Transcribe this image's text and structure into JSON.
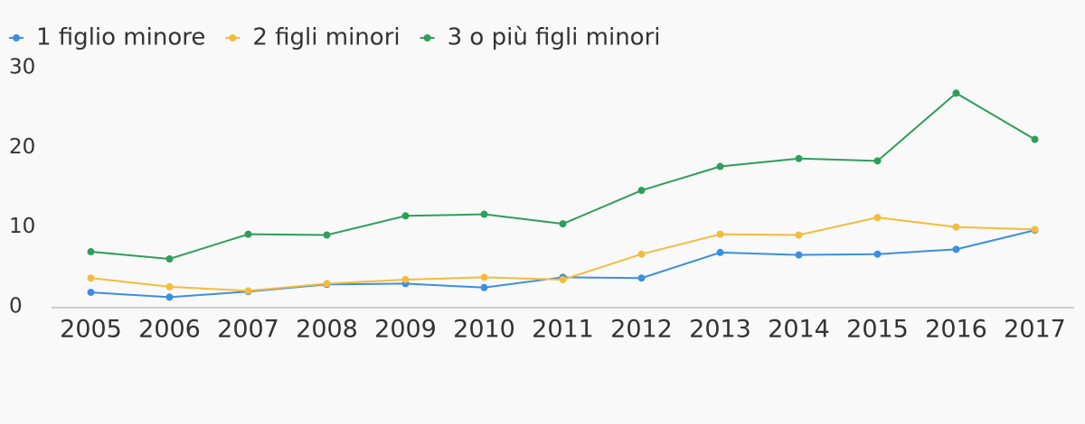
{
  "chart_data": {
    "type": "line",
    "x": [
      "2005",
      "2006",
      "2007",
      "2008",
      "2009",
      "2010",
      "2011",
      "2012",
      "2013",
      "2014",
      "2015",
      "2016",
      "2017"
    ],
    "series": [
      {
        "name": "1 figlio minore",
        "color": "#3b8fe0",
        "values": [
          1.8,
          1.2,
          1.9,
          2.8,
          2.9,
          2.4,
          3.7,
          3.6,
          6.8,
          6.5,
          6.6,
          7.2,
          9.6
        ]
      },
      {
        "name": "2 figli minori",
        "color": "#f5bb3c",
        "values": [
          3.6,
          2.5,
          2.0,
          2.9,
          3.4,
          3.7,
          3.4,
          6.6,
          9.1,
          9.0,
          11.2,
          10.0,
          9.7
        ]
      },
      {
        "name": "3 o più figli minori",
        "color": "#2e9e5b",
        "values": [
          6.9,
          6.0,
          9.1,
          9.0,
          11.4,
          11.6,
          10.4,
          14.6,
          17.6,
          18.6,
          18.3,
          26.8,
          21.0
        ]
      }
    ],
    "ylim": [
      0,
      30
    ],
    "yticks": [
      0,
      10,
      20,
      30
    ],
    "legend": "top-left",
    "grid": false
  }
}
